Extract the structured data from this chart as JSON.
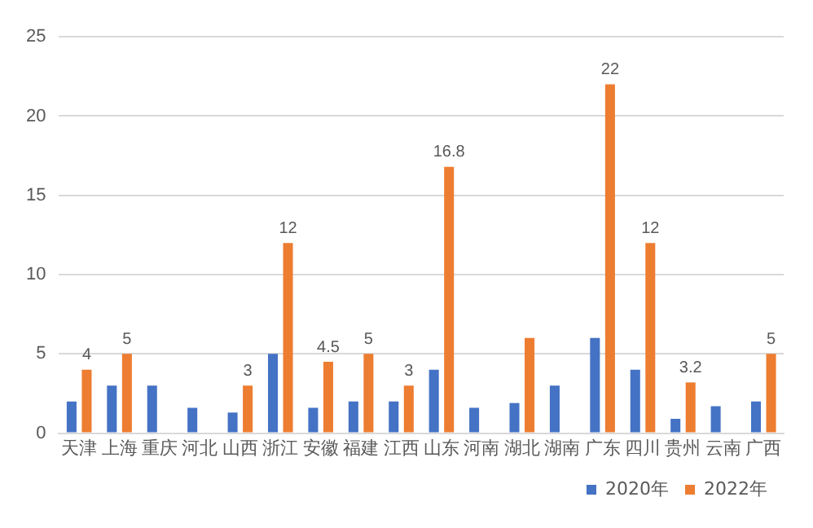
{
  "chart_data": {
    "type": "bar",
    "categories": [
      "天津",
      "上海",
      "重庆",
      "河北",
      "山西",
      "浙江",
      "安徽",
      "福建",
      "江西",
      "山东",
      "河南",
      "湖北",
      "湖南",
      "广东",
      "四川",
      "贵州",
      "云南",
      "广西"
    ],
    "series": [
      {
        "name": "2020年",
        "color": "#4472c4",
        "values": [
          2,
          3,
          3,
          1.6,
          1.3,
          5,
          1.6,
          2,
          2,
          4,
          1.6,
          1.9,
          3,
          6,
          4,
          0.9,
          1.7,
          2
        ]
      },
      {
        "name": "2022年",
        "color": "#ed7d31",
        "values": [
          4,
          5,
          null,
          null,
          3,
          12,
          4.5,
          5,
          3,
          16.8,
          null,
          6,
          null,
          22,
          12,
          3.2,
          null,
          5
        ],
        "value_labels": [
          "4",
          "5",
          null,
          null,
          "3",
          "12",
          "4.5",
          "5",
          "3",
          "16.8",
          null,
          null,
          null,
          "22",
          "12",
          "3.2",
          null,
          "5"
        ]
      }
    ],
    "ylim": [
      0,
      25
    ],
    "yticks": [
      0,
      5,
      10,
      15,
      20,
      25
    ],
    "grid": "y",
    "legend": "bottom"
  }
}
